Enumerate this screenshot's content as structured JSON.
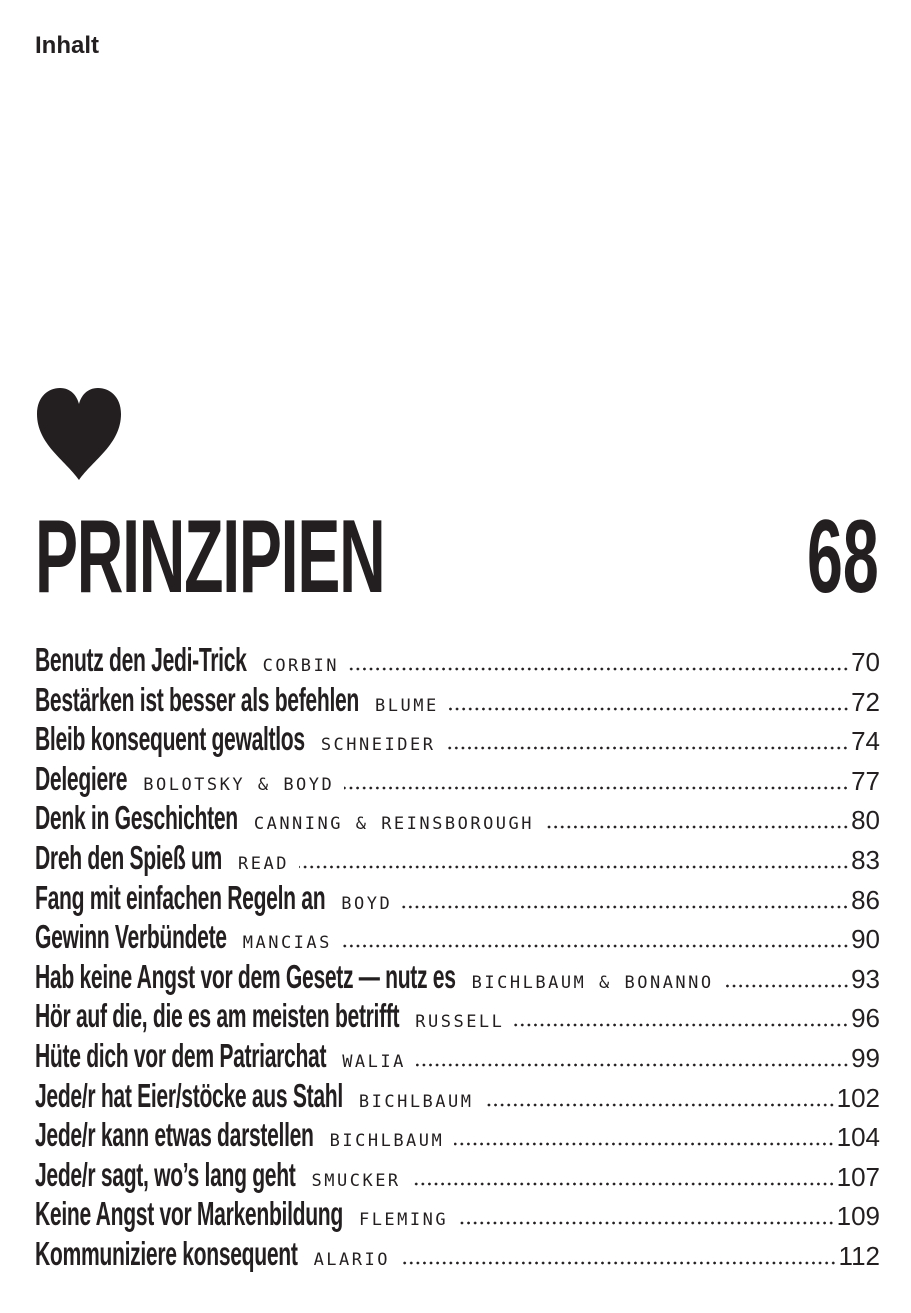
{
  "header": {
    "title": "Inhalt"
  },
  "section": {
    "icon": "heart-icon",
    "title": "PRINZIPIEN",
    "page": "68"
  },
  "entries": [
    {
      "title": "Benutz den Jedi-Trick",
      "author": "CORBIN",
      "page": "70"
    },
    {
      "title": "Bestärken ist besser als befehlen",
      "author": "BLUME",
      "page": "72"
    },
    {
      "title": "Bleib konsequent gewaltlos",
      "author": "SCHNEIDER",
      "page": "74"
    },
    {
      "title": "Delegiere",
      "author": "BOLOTSKY & BOYD",
      "page": "77"
    },
    {
      "title": "Denk in Geschichten",
      "author": "CANNING & REINSBOROUGH",
      "page": "80"
    },
    {
      "title": "Dreh den Spieß um",
      "author": "READ",
      "page": "83"
    },
    {
      "title": "Fang mit einfachen Regeln an",
      "author": "BOYD",
      "page": "86"
    },
    {
      "title": "Gewinn Verbündete",
      "author": "MANCIAS",
      "page": "90"
    },
    {
      "title": "Hab keine Angst vor dem Gesetz — nutz es",
      "author": "BICHLBAUM & BONANNO",
      "page": "93"
    },
    {
      "title": "Hör auf die, die es am meisten betrifft",
      "author": "RUSSELL",
      "page": "96"
    },
    {
      "title": "Hüte dich vor dem Patriarchat",
      "author": "WALIA",
      "page": "99"
    },
    {
      "title": "Jede/r hat Eier/stöcke aus Stahl",
      "author": "BICHLBAUM",
      "page": "102"
    },
    {
      "title": "Jede/r kann etwas darstellen",
      "author": "BICHLBAUM",
      "page": "104"
    },
    {
      "title": "Jede/r sagt, wo’s lang geht",
      "author": "SMUCKER",
      "page": "107"
    },
    {
      "title": "Keine Angst vor Markenbildung",
      "author": "FLEMING",
      "page": "109"
    },
    {
      "title": "Kommuniziere konsequent",
      "author": "ALARIO",
      "page": "112"
    }
  ]
}
